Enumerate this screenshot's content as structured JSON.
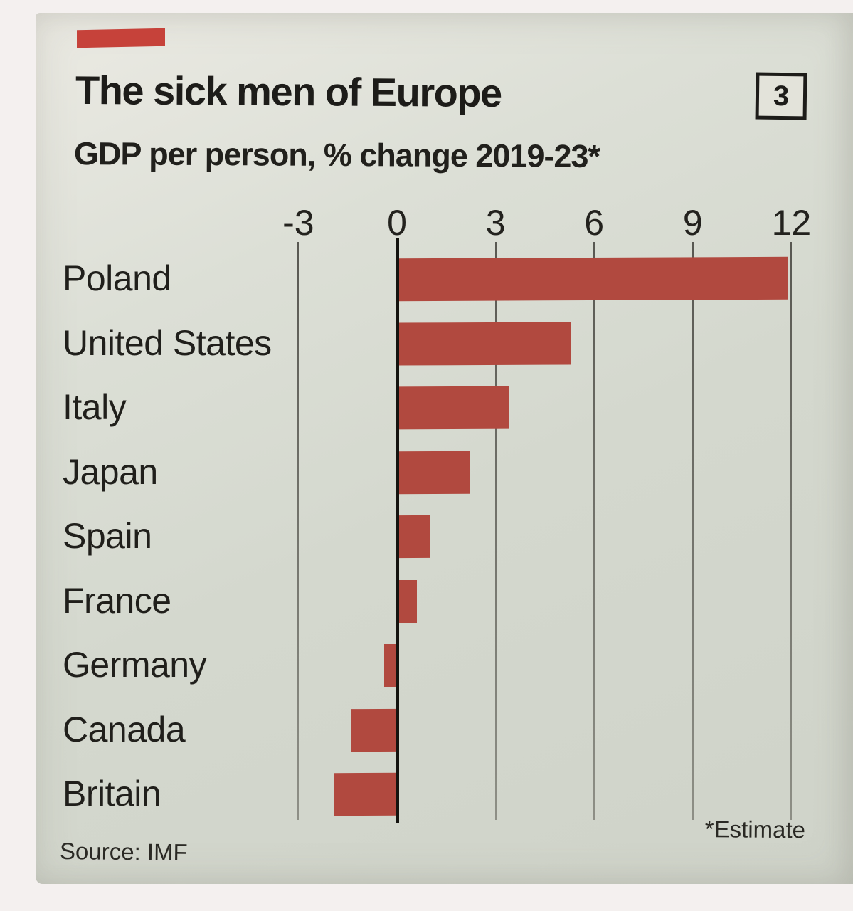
{
  "header": {
    "title": "The sick men of Europe",
    "subtitle": "GDP per person, % change 2019-23*",
    "badge": "3"
  },
  "footer": {
    "source": "Source: IMF",
    "footnote": "*Estimate"
  },
  "colors": {
    "bar": "#b1493f",
    "tab": "#c6423a",
    "paper": "#d6d9d0",
    "text": "#1d1c19",
    "zero_axis": "#14130f"
  },
  "chart_data": {
    "type": "bar",
    "orientation": "horizontal",
    "title": "The sick men of Europe",
    "subtitle": "GDP per person, % change 2019-23*",
    "categories": [
      "Poland",
      "United States",
      "Italy",
      "Japan",
      "Spain",
      "France",
      "Germany",
      "Canada",
      "Britain"
    ],
    "values": [
      11.9,
      5.3,
      3.4,
      2.2,
      1.0,
      0.6,
      -0.4,
      -1.4,
      -1.9
    ],
    "xlabel": "",
    "ylabel": "",
    "xlim": [
      -3,
      12
    ],
    "xticks": [
      -3,
      0,
      3,
      6,
      9,
      12
    ],
    "grid": "vertical gridlines, zero baseline emphasized",
    "legend": "none",
    "source": "Source: IMF",
    "footnote": "*Estimate",
    "bar_color": "#b1493f"
  }
}
